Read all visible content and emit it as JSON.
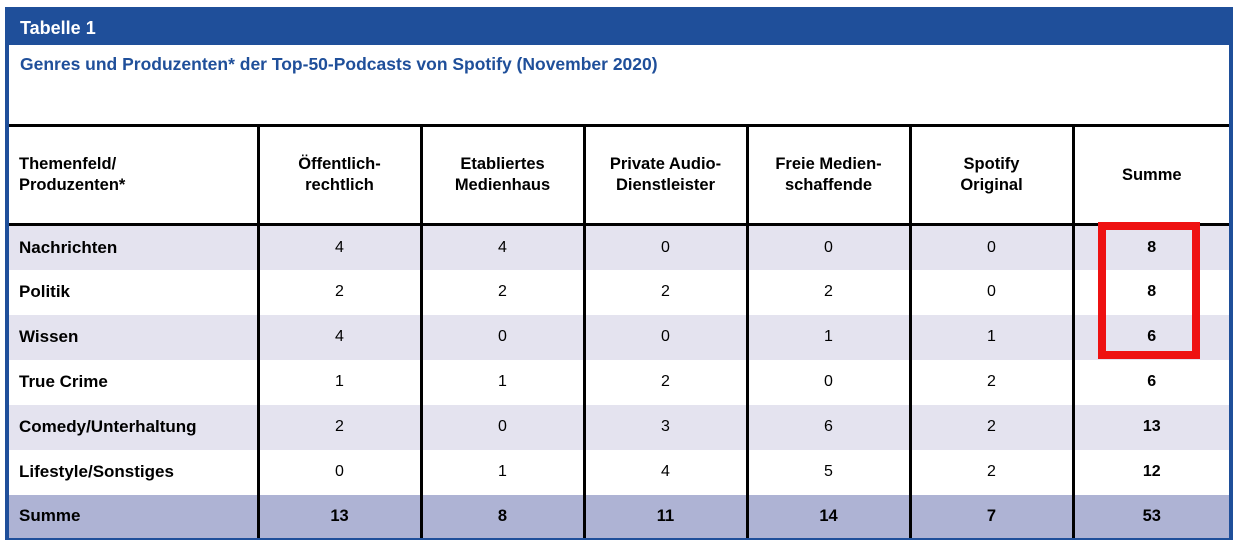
{
  "colors": {
    "primary_blue": "#1f4f9a",
    "stripe_lavender": "#e4e3ef",
    "total_row_blue": "#aeb3d4",
    "grid_black": "#000000",
    "highlight_red": "#ee1111"
  },
  "title_bar": {
    "label": "Tabelle 1"
  },
  "subtitle": "Genres und Produzenten* der Top-50-Podcasts von Spotify (November 2020)",
  "chart_data": {
    "type": "table",
    "columns": [
      "Themenfeld/\nProduzenten*",
      "Öffentlich-\nrechtlich",
      "Etabliertes\nMedienhaus",
      "Private Audio-\nDienstleister",
      "Freie Medien-\nschaffende",
      "Spotify\nOriginal",
      "Summe"
    ],
    "rows": [
      {
        "label": "Nachrichten",
        "values": [
          4,
          4,
          0,
          0,
          0
        ],
        "summe": 8
      },
      {
        "label": "Politik",
        "values": [
          2,
          2,
          2,
          2,
          0
        ],
        "summe": 8
      },
      {
        "label": "Wissen",
        "values": [
          4,
          0,
          0,
          1,
          1
        ],
        "summe": 6
      },
      {
        "label": "True Crime",
        "values": [
          1,
          1,
          2,
          0,
          2
        ],
        "summe": 6
      },
      {
        "label": "Comedy/Unterhaltung",
        "values": [
          2,
          0,
          3,
          6,
          2
        ],
        "summe": 13
      },
      {
        "label": "Lifestyle/Sonstiges",
        "values": [
          0,
          1,
          4,
          5,
          2
        ],
        "summe": 12
      }
    ],
    "total_row": {
      "label": "Summe",
      "values": [
        13,
        8,
        11,
        14,
        7
      ],
      "summe": 53
    },
    "highlight_box": {
      "column": "Summe",
      "rows": [
        "Nachrichten",
        "Politik",
        "Wissen"
      ],
      "color": "#ee1111"
    }
  }
}
